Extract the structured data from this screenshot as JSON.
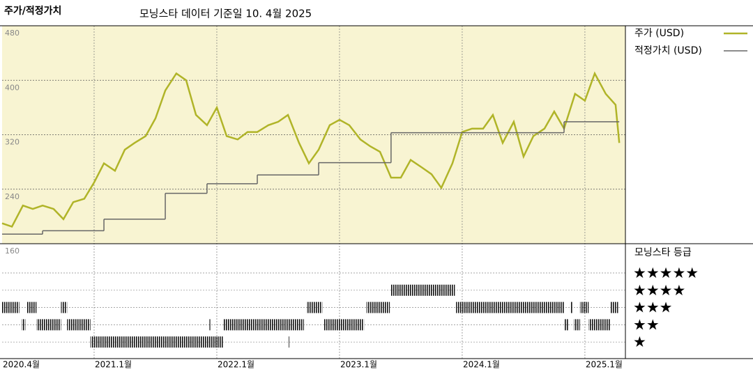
{
  "chart_data": {
    "type": "line",
    "title": "주가/적정가치",
    "subtitle": "모닝스타 데이터 기준일 10. 4월 2025",
    "xlim": [
      2020.25,
      2025.33
    ],
    "xticks": [
      {
        "value": 2020.25,
        "label": "2020.4월"
      },
      {
        "value": 2021,
        "label": "2021.1월"
      },
      {
        "value": 2022,
        "label": "2022.1월"
      },
      {
        "value": 2023,
        "label": "2023.1월"
      },
      {
        "value": 2024,
        "label": "2024.1월"
      },
      {
        "value": 2025,
        "label": "2025.1월"
      }
    ],
    "ylim": [
      160,
      480
    ],
    "yticks": [
      160,
      240,
      320,
      400,
      480
    ],
    "grid": true,
    "series": [
      {
        "name": "주가 (USD)",
        "color": "#b0b428",
        "x": [
          2020.25,
          2020.33,
          2020.42,
          2020.5,
          2020.58,
          2020.67,
          2020.75,
          2020.83,
          2020.92,
          2021,
          2021.08,
          2021.17,
          2021.25,
          2021.33,
          2021.42,
          2021.5,
          2021.58,
          2021.67,
          2021.75,
          2021.83,
          2021.92,
          2022,
          2022.08,
          2022.17,
          2022.25,
          2022.33,
          2022.42,
          2022.5,
          2022.58,
          2022.67,
          2022.75,
          2022.83,
          2022.92,
          2023,
          2023.08,
          2023.17,
          2023.25,
          2023.33,
          2023.42,
          2023.5,
          2023.58,
          2023.67,
          2023.75,
          2023.83,
          2023.92,
          2024,
          2024.08,
          2024.17,
          2024.25,
          2024.33,
          2024.42,
          2024.5,
          2024.58,
          2024.67,
          2024.75,
          2024.83,
          2024.92,
          2025,
          2025.08,
          2025.17,
          2025.25,
          2025.28
        ],
        "values": [
          190,
          185,
          216,
          211,
          216,
          211,
          196,
          221,
          226,
          250,
          278,
          267,
          298,
          308,
          318,
          344,
          385,
          410,
          400,
          349,
          334,
          360,
          318,
          313,
          324,
          324,
          334,
          339,
          349,
          308,
          278,
          298,
          334,
          342,
          334,
          313,
          303,
          295,
          257,
          257,
          283,
          272,
          262,
          242,
          278,
          324,
          329,
          329,
          349,
          308,
          339,
          288,
          318,
          329,
          354,
          329,
          380,
          370,
          410,
          380,
          364,
          308
        ]
      },
      {
        "name": "적정가치 (USD)",
        "color": "#666666",
        "step": true,
        "x": [
          2020.25,
          2020.58,
          2021.08,
          2021.58,
          2021.92,
          2022.33,
          2022.83,
          2023.42,
          2024.83,
          2025.28
        ],
        "values": [
          174,
          179,
          196,
          234,
          248,
          261,
          279,
          323,
          339,
          339
        ]
      }
    ],
    "rating": {
      "title": "모닝스타 등급",
      "levels": [
        {
          "stars": 5,
          "label": "★★★★★"
        },
        {
          "stars": 4,
          "label": "★★★★"
        },
        {
          "stars": 3,
          "label": "★★★"
        },
        {
          "stars": 2,
          "label": "★★"
        },
        {
          "stars": 1,
          "label": "★"
        }
      ],
      "periods": [
        {
          "start": 2020.25,
          "end": 2020.39,
          "stars": 3
        },
        {
          "start": 2020.41,
          "end": 2020.44,
          "stars": 2
        },
        {
          "start": 2020.45,
          "end": 2020.53,
          "stars": 3
        },
        {
          "start": 2020.53,
          "end": 2020.73,
          "stars": 2
        },
        {
          "start": 2020.73,
          "end": 2020.78,
          "stars": 3
        },
        {
          "start": 2020.78,
          "end": 2020.97,
          "stars": 2
        },
        {
          "start": 2020.97,
          "end": 2022.05,
          "stars": 1
        },
        {
          "start": 2021.94,
          "end": 2021.95,
          "stars": 2
        },
        {
          "start": 2022.05,
          "end": 2022.71,
          "stars": 2
        },
        {
          "start": 2022.58,
          "end": 2022.59,
          "stars": 1
        },
        {
          "start": 2022.73,
          "end": 2022.86,
          "stars": 3
        },
        {
          "start": 2022.87,
          "end": 2023.2,
          "stars": 2
        },
        {
          "start": 2023.22,
          "end": 2023.41,
          "stars": 3
        },
        {
          "start": 2023.42,
          "end": 2023.94,
          "stars": 4
        },
        {
          "start": 2023.95,
          "end": 2024.83,
          "stars": 3
        },
        {
          "start": 2024.83,
          "end": 2024.87,
          "stars": 2
        },
        {
          "start": 2024.88,
          "end": 2024.9,
          "stars": 3
        },
        {
          "start": 2024.91,
          "end": 2024.96,
          "stars": 2
        },
        {
          "start": 2024.96,
          "end": 2025.03,
          "stars": 3
        },
        {
          "start": 2025.03,
          "end": 2025.21,
          "stars": 2
        },
        {
          "start": 2025.21,
          "end": 2025.27,
          "stars": 3
        }
      ]
    }
  }
}
